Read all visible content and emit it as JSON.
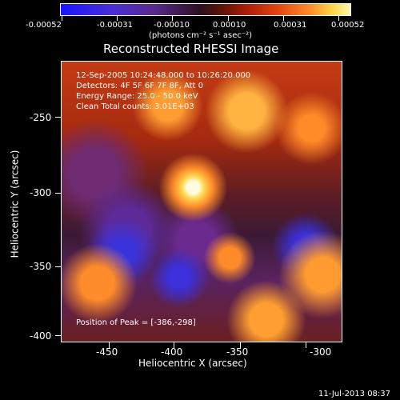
{
  "colorbar": {
    "ticks": [
      "-0.00052",
      "-0.00031",
      "-0.00010",
      "0.00010",
      "0.00031",
      "0.00052"
    ],
    "units": "(photons cm⁻² s⁻¹ asec⁻²)"
  },
  "plot": {
    "title": "Reconstructed RHESSI Image",
    "xlabel": "Heliocentric X (arcsec)",
    "ylabel": "Heliocentric Y (arcsec)",
    "xticks": [
      "-450",
      "-400",
      "-350",
      "-300"
    ],
    "yticks": [
      "-250",
      "-300",
      "-350",
      "-400"
    ],
    "info_lines": [
      "12-Sep-2005 10:24:48.000 to 10:26:20.000",
      "Detectors: 4F 5F 6F 7F 8F, Att 0",
      "Energy Range: 25.0 - 50.0 keV",
      "Clean    Total counts: 3.01E+03"
    ],
    "peak": "Position of Peak = [-386,-298]"
  },
  "footer": {
    "timestamp": "11-Jul-2013 08:37"
  }
}
